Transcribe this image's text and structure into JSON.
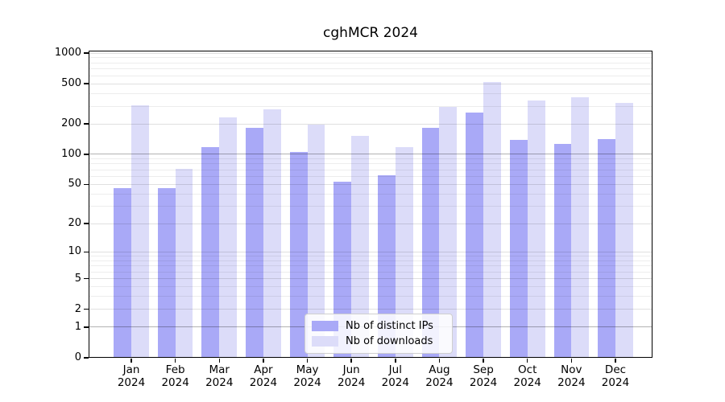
{
  "chart_data": {
    "type": "bar",
    "title": "cghMCR 2024",
    "x_categories": [
      {
        "month": "Jan",
        "year": "2024"
      },
      {
        "month": "Feb",
        "year": "2024"
      },
      {
        "month": "Mar",
        "year": "2024"
      },
      {
        "month": "Apr",
        "year": "2024"
      },
      {
        "month": "May",
        "year": "2024"
      },
      {
        "month": "Jun",
        "year": "2024"
      },
      {
        "month": "Jul",
        "year": "2024"
      },
      {
        "month": "Aug",
        "year": "2024"
      },
      {
        "month": "Sep",
        "year": "2024"
      },
      {
        "month": "Oct",
        "year": "2024"
      },
      {
        "month": "Nov",
        "year": "2024"
      },
      {
        "month": "Dec",
        "year": "2024"
      }
    ],
    "series": [
      {
        "name": "Nb of distinct IPs",
        "color": "#a9a9f7",
        "values": [
          46,
          46,
          118,
          183,
          105,
          53,
          62,
          183,
          259,
          138,
          127,
          141
        ]
      },
      {
        "name": "Nb of downloads",
        "color": "#dcdcf9",
        "values": [
          305,
          72,
          231,
          277,
          196,
          151,
          117,
          296,
          519,
          341,
          368,
          324
        ]
      }
    ],
    "y_axis": {
      "scale": "log10(value+1)",
      "ticks": [
        1000,
        500,
        200,
        100,
        50,
        20,
        10,
        5,
        2,
        1,
        0
      ],
      "minor_gridlines": [
        3,
        4,
        6,
        7,
        8,
        9,
        30,
        40,
        60,
        70,
        80,
        90,
        300,
        400,
        600,
        700,
        800,
        900
      ],
      "emphasized_gridlines": [
        100,
        1
      ],
      "range": [
        0,
        1058
      ]
    },
    "grid": true,
    "legend": {
      "position": "lower-center-inside",
      "items": [
        "Nb of distinct IPs",
        "Nb of downloads"
      ]
    }
  }
}
